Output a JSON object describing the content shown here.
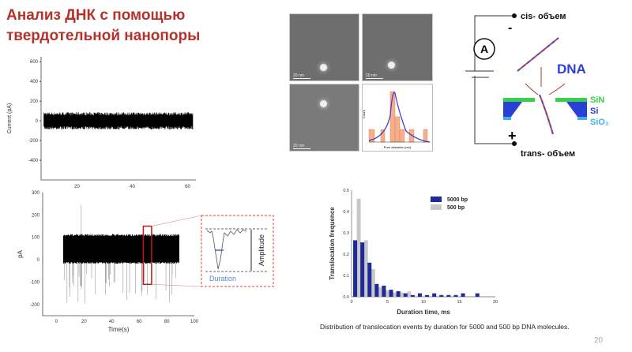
{
  "title": {
    "line1": "Анализ ДНК с помощью",
    "line2": "твердотельной нанопоры"
  },
  "baseline_chart": {
    "ylabel": "Current (pA)",
    "yticks": [
      600,
      400,
      200,
      0,
      -200,
      -400
    ],
    "xticks": [
      20,
      40,
      60
    ],
    "ylim": [
      -600,
      650
    ],
    "xlim": [
      7,
      63
    ],
    "signal_range": [
      -80,
      80
    ],
    "signal_x": [
      8,
      62
    ]
  },
  "events_chart": {
    "ylabel": "pA",
    "xlabel": "Time(s)",
    "yticks": [
      300,
      200,
      100,
      0,
      -100,
      -200
    ],
    "xticks": [
      0,
      20,
      40,
      60,
      80,
      100
    ],
    "ylim": [
      -250,
      300
    ],
    "xlim": [
      -10,
      100
    ],
    "signal_x": [
      5,
      89
    ],
    "signal_range": [
      -10,
      115
    ],
    "highlight_x": [
      63,
      69
    ]
  },
  "inset": {
    "amplitude_label": "Amplitude",
    "duration_label": "Duration"
  },
  "microscopy": {
    "scale_labels": [
      "20 nm",
      "20 nm",
      "20 nm"
    ],
    "hist": {
      "xlabel": "Pore diameter (nm)",
      "ylabel": "Count"
    }
  },
  "circuit": {
    "cis_label": "cis- объем",
    "trans_label": "trans- объем",
    "minus": "-",
    "plus": "+",
    "ammeter": "A",
    "dna_label": "DNA",
    "layers": [
      {
        "name": "SiN",
        "color": "#35d14a"
      },
      {
        "name": "Si",
        "color": "#2a3fd6"
      },
      {
        "name": "SiO₂",
        "color": "#3fb2e8"
      }
    ]
  },
  "chart_data": {
    "type": "bar",
    "title": "",
    "xlabel": "Duration time, ms",
    "ylabel": "Translocation frequence",
    "xlim": [
      0,
      20
    ],
    "ylim": [
      0,
      0.5
    ],
    "xticks": [
      0,
      5,
      10,
      15,
      20
    ],
    "yticks": [
      0.0,
      0.1,
      0.2,
      0.3,
      0.4,
      0.5
    ],
    "legend_position": "top-right",
    "series": [
      {
        "name": "5000 bp",
        "color": "#1f2a9a",
        "x": [
          0.5,
          1.5,
          2.5,
          3.5,
          4.5,
          5.5,
          6.5,
          7.5,
          8.5,
          9.5,
          10.5,
          11.5,
          12.5,
          13.5,
          14.5,
          15.5,
          17.5
        ],
        "values": [
          0.265,
          0.255,
          0.16,
          0.06,
          0.052,
          0.033,
          0.026,
          0.016,
          0.008,
          0.016,
          0.008,
          0.016,
          0.008,
          0.008,
          0.008,
          0.016,
          0.016
        ]
      },
      {
        "name": "500 bp",
        "color": "#c8c8c8",
        "x": [
          1,
          2,
          3,
          4,
          5,
          6,
          7,
          8
        ],
        "values": [
          0.46,
          0.265,
          0.13,
          0.045,
          0.03,
          0.02,
          0.02,
          0.025
        ]
      }
    ]
  },
  "caption": "Distribution of translocation events by duration for 5000 and 500 bp DNA molecules.",
  "page_number": "20"
}
